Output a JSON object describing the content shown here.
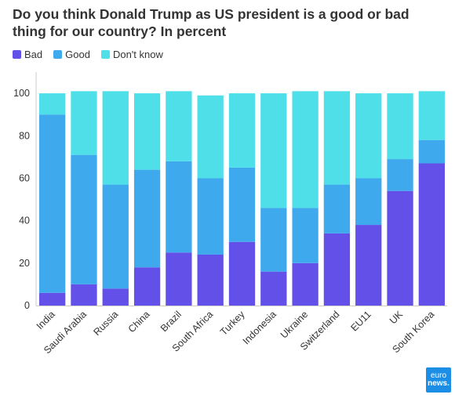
{
  "chart_data": {
    "type": "bar",
    "stacked": true,
    "title": "Do you think Donald Trump as US president is a good or bad thing for our country? In percent",
    "xlabel": "",
    "ylabel": "",
    "ylim": [
      0,
      110
    ],
    "yticks": [
      0,
      20,
      40,
      60,
      80,
      100
    ],
    "legend_position": "top-left",
    "categories": [
      "India",
      "Saudi Arabia",
      "Russia",
      "China",
      "Brazil",
      "South Africa",
      "Turkey",
      "Indonesia",
      "Ukraine",
      "Switzerland",
      "EU11",
      "UK",
      "South Korea"
    ],
    "series": [
      {
        "name": "Bad",
        "color": "#6350e8",
        "values": [
          6,
          10,
          8,
          18,
          25,
          24,
          30,
          16,
          20,
          34,
          38,
          54,
          67
        ]
      },
      {
        "name": "Good",
        "color": "#3fa9ee",
        "values": [
          84,
          61,
          49,
          46,
          43,
          36,
          35,
          30,
          26,
          23,
          22,
          15,
          11
        ]
      },
      {
        "name": "Don't know",
        "color": "#4fdfe9",
        "values": [
          10,
          30,
          44,
          36,
          33,
          39,
          35,
          54,
          55,
          44,
          40,
          31,
          23
        ]
      }
    ]
  },
  "logo": {
    "line1": "euro",
    "line2": "news."
  }
}
